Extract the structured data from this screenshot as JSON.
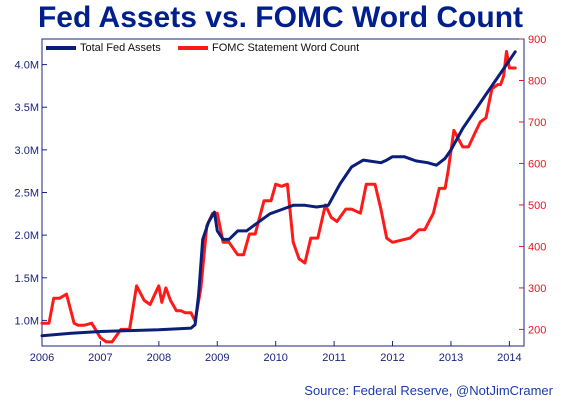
{
  "title": "Fed Assets vs. FOMC Word Count",
  "source": "Source: Federal Reserve, @NotJimCramer",
  "colors": {
    "assets": "#0b1e7a",
    "words": "#ff1a1a",
    "title": "#001e8c",
    "left_axis": "#1a237e",
    "right_axis": "#e8141c"
  },
  "chart_data": {
    "type": "line",
    "title": "Fed Assets vs. FOMC Word Count",
    "x_ticks": [
      "2006",
      "2007",
      "2008",
      "2009",
      "2010",
      "2011",
      "2012",
      "2013",
      "2014"
    ],
    "xlim": [
      2006,
      2014.25
    ],
    "y_left": {
      "ticks": [
        "1.0M",
        "1.5M",
        "2.0M",
        "2.5M",
        "3.0M",
        "3.5M",
        "4.0M"
      ],
      "lim": [
        0.7,
        4.3
      ]
    },
    "y_right": {
      "ticks": [
        "200",
        "300",
        "400",
        "500",
        "600",
        "700",
        "800",
        "900"
      ],
      "lim": [
        160,
        900
      ]
    },
    "legend_position": "top-left",
    "grid": false,
    "series": [
      {
        "name": "Total Fed Assets",
        "axis": "left",
        "x": [
          2006.0,
          2006.5,
          2007.0,
          2007.5,
          2008.0,
          2008.3,
          2008.55,
          2008.62,
          2008.68,
          2008.75,
          2008.85,
          2008.95,
          2009.0,
          2009.1,
          2009.2,
          2009.35,
          2009.5,
          2009.7,
          2009.9,
          2010.1,
          2010.3,
          2010.5,
          2010.7,
          2010.9,
          2011.1,
          2011.3,
          2011.5,
          2011.8,
          2011.9,
          2012.0,
          2012.2,
          2012.4,
          2012.6,
          2012.75,
          2012.9,
          2013.0,
          2013.2,
          2013.4,
          2013.6,
          2013.8,
          2014.0,
          2014.1
        ],
        "values": [
          0.82,
          0.85,
          0.87,
          0.88,
          0.89,
          0.9,
          0.91,
          0.95,
          1.3,
          1.95,
          2.15,
          2.27,
          2.05,
          1.95,
          1.95,
          2.05,
          2.05,
          2.15,
          2.25,
          2.3,
          2.35,
          2.35,
          2.33,
          2.35,
          2.6,
          2.8,
          2.88,
          2.85,
          2.88,
          2.92,
          2.92,
          2.87,
          2.85,
          2.82,
          2.9,
          3.0,
          3.25,
          3.45,
          3.65,
          3.85,
          4.05,
          4.15
        ]
      },
      {
        "name": "FOMC Statement Word Count",
        "axis": "right",
        "x": [
          2006.0,
          2006.12,
          2006.2,
          2006.3,
          2006.42,
          2006.55,
          2006.62,
          2006.72,
          2006.85,
          2007.0,
          2007.1,
          2007.2,
          2007.35,
          2007.5,
          2007.62,
          2007.75,
          2007.85,
          2008.0,
          2008.05,
          2008.12,
          2008.2,
          2008.3,
          2008.38,
          2008.45,
          2008.55,
          2008.62,
          2008.72,
          2008.82,
          2008.92,
          2009.0,
          2009.1,
          2009.2,
          2009.35,
          2009.45,
          2009.55,
          2009.65,
          2009.8,
          2009.92,
          2010.0,
          2010.1,
          2010.2,
          2010.3,
          2010.4,
          2010.5,
          2010.6,
          2010.72,
          2010.85,
          2010.95,
          2011.05,
          2011.2,
          2011.3,
          2011.45,
          2011.55,
          2011.7,
          2011.8,
          2011.9,
          2012.0,
          2012.15,
          2012.3,
          2012.45,
          2012.55,
          2012.7,
          2012.8,
          2012.9,
          2012.95,
          2013.05,
          2013.2,
          2013.3,
          2013.4,
          2013.5,
          2013.6,
          2013.7,
          2013.8,
          2013.85,
          2013.9,
          2013.95,
          2014.0,
          2014.1
        ],
        "values": [
          215,
          215,
          275,
          275,
          285,
          215,
          210,
          210,
          215,
          180,
          170,
          170,
          200,
          200,
          305,
          270,
          260,
          305,
          265,
          300,
          270,
          245,
          245,
          240,
          240,
          220,
          300,
          450,
          480,
          480,
          410,
          410,
          380,
          380,
          430,
          430,
          510,
          510,
          550,
          545,
          550,
          410,
          370,
          360,
          420,
          420,
          500,
          470,
          460,
          490,
          490,
          480,
          550,
          550,
          490,
          420,
          410,
          415,
          420,
          440,
          440,
          480,
          540,
          540,
          580,
          680,
          640,
          640,
          670,
          700,
          710,
          780,
          790,
          790,
          810,
          870,
          830,
          830
        ]
      }
    ]
  }
}
